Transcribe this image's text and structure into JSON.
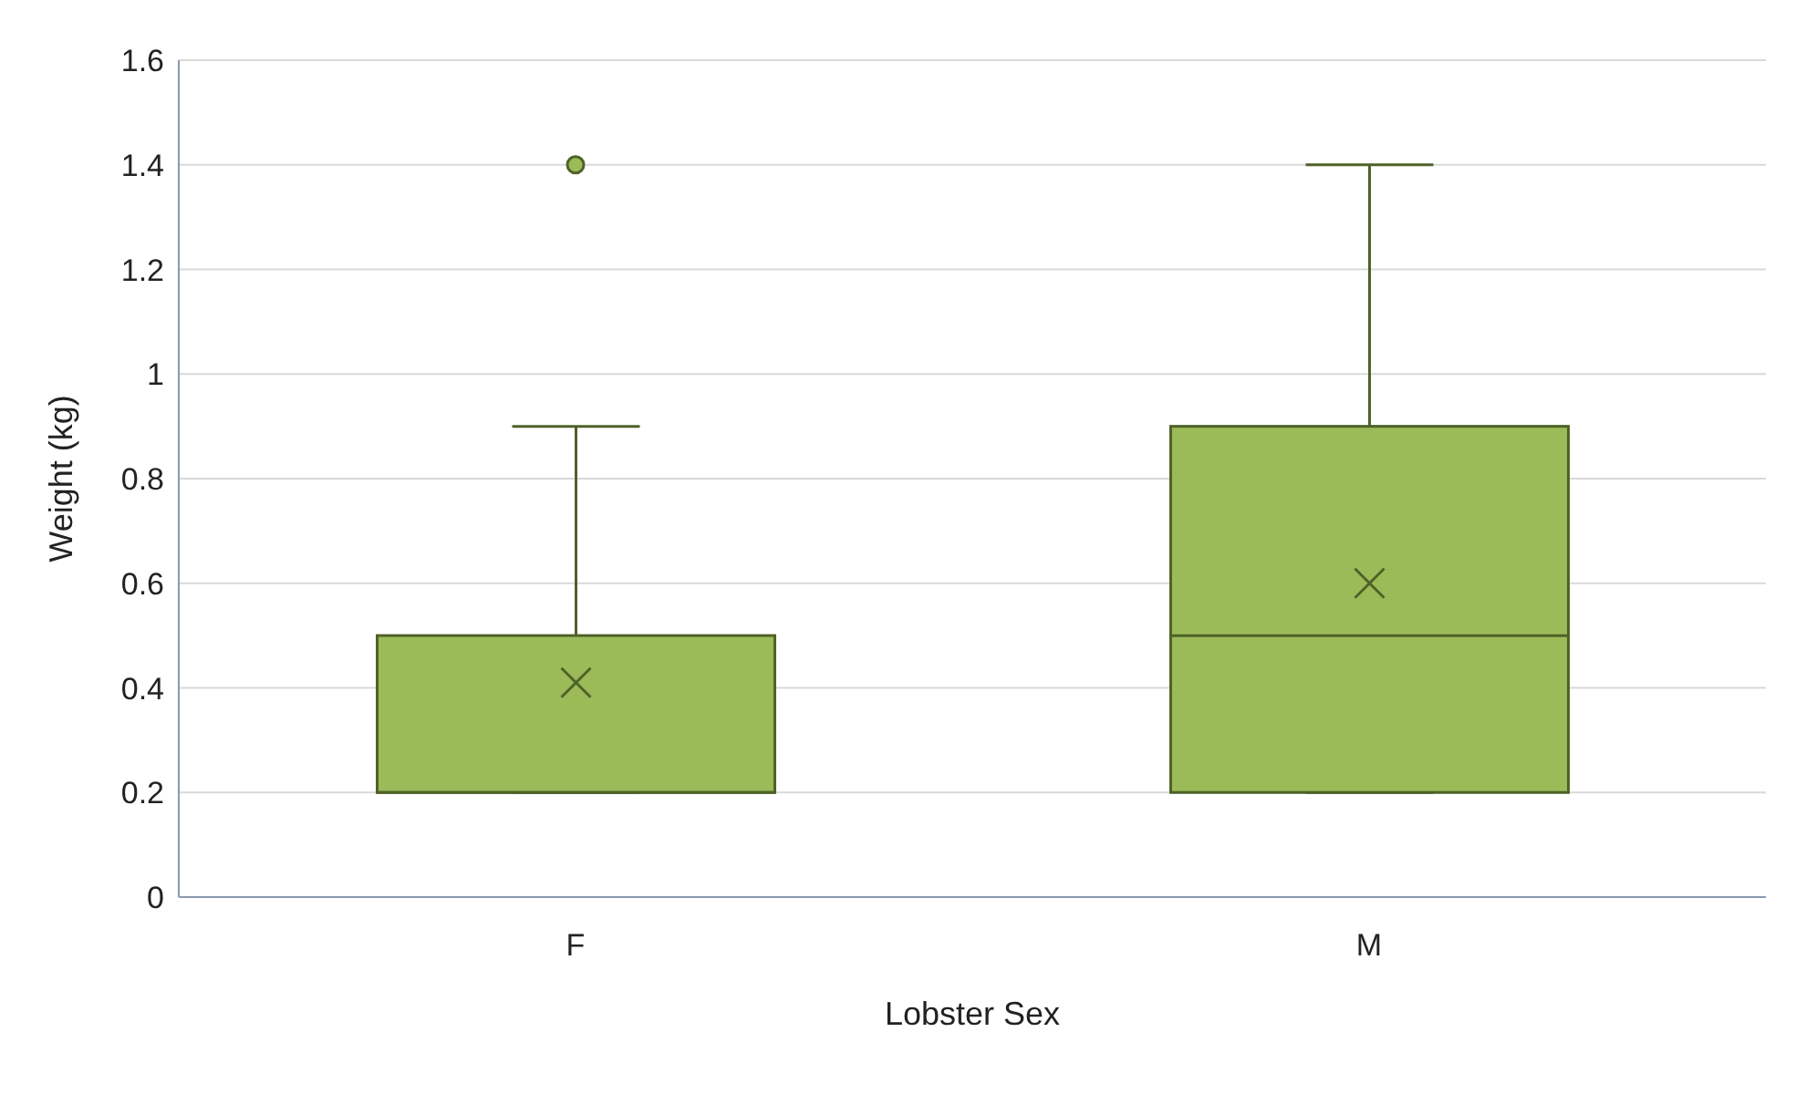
{
  "chart_data": {
    "type": "box",
    "xlabel": "Lobster Sex",
    "ylabel": "Weight (kg)",
    "categories": [
      "F",
      "M"
    ],
    "color": "#9bbb59",
    "boxes": [
      {
        "low": 0.2,
        "q1": 0.2,
        "median": 0.2,
        "q3": 0.5,
        "high": 0.9,
        "mean": 0.41,
        "outliers": [
          1.4
        ]
      },
      {
        "low": 0.2,
        "q1": 0.2,
        "median": 0.5,
        "q3": 0.9,
        "high": 1.4,
        "mean": 0.6
      }
    ],
    "ylim": [
      0,
      1.6
    ],
    "yticks": [
      0,
      0.2,
      0.4,
      0.6,
      0.8,
      1,
      1.2,
      1.4,
      1.6
    ],
    "grid": "y",
    "legend": false
  }
}
